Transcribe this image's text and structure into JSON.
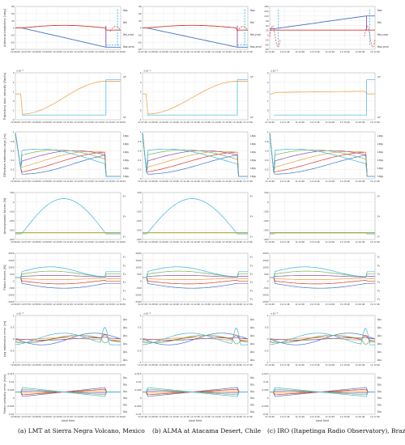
{
  "chart_data": {
    "type": "line",
    "layout": "7 rows x 3 columns of small-multiple line plots",
    "grid": true,
    "columns": [
      {
        "caption": "(a)  LMT at Sierra Negra Volcano, Mexico",
        "xticks": [
          "12:06:09",
          "12:07:09",
          "12:08:09",
          "12:09:09",
          "12:10:09",
          "12:11:09",
          "12:12:09",
          "12:13:09",
          "12:14:09",
          "12:15:09",
          "12:16:09"
        ],
        "xlabel": "Local time"
      },
      {
        "caption": "(b)  ALMA at Atacama Desert, Chile",
        "xticks": [
          "11:07:46",
          "11:08:46",
          "11:09:46",
          "11:10:46",
          "11:11:46",
          "11:12:46",
          "11:13:46",
          "11:14:46",
          "11:15:46",
          "11:16:46",
          "11:17:46"
        ],
        "xlabel": "Local time"
      },
      {
        "caption": "(c)  IRO (Itapetinga Radio Observatory), Brazil",
        "xticks": [
          "11:10:46",
          "11:11:46",
          "11:12:46",
          "11:13:46",
          "11:14:46",
          "11:15:46",
          "11:16:46",
          "11:17:46"
        ],
        "xlabel": "Local time"
      }
    ],
    "rows": [
      {
        "ylabel": "Antenna trajectory [deg]",
        "multiplier": "",
        "yticks": [
          [
            "90",
            "60",
            "30",
            "0",
            "-30",
            "-60",
            "-90"
          ],
          [
            "90",
            "60",
            "30",
            "0",
            "-30",
            "-60",
            "-90"
          ],
          [
            "180",
            "150",
            "120",
            "90",
            "60",
            "30",
            "0",
            "-30",
            "-60",
            "-90"
          ]
        ],
        "legend": [
          "θaz",
          "θel",
          "θel,cmd",
          "θaz,cmd"
        ]
      },
      {
        "ylabel": "Trajectory task velocity [Rad/s]",
        "multiplier": "×10⁻³",
        "yticks": [
          [
            "3",
            "2",
            "1",
            "0",
            "-1",
            "-2"
          ],
          [
            "4",
            "3",
            "2",
            "1",
            "0",
            "-1"
          ],
          [
            "4",
            "3",
            "2",
            "1",
            "0",
            "-1"
          ]
        ],
        "legend": [
          "ωᵃ",
          "ωᵉ"
        ]
      },
      {
        "ylabel": "Effective extension legs [m]",
        "multiplier": "",
        "yticks": [
          [
            "1",
            "0.8",
            "0.6",
            "0.4",
            "0.2",
            "0"
          ],
          [
            "1",
            "0.8",
            "0.6",
            "0.4",
            "0.2",
            "0"
          ],
          [
            "1",
            "0.8",
            "0.6",
            "0.4",
            "0.2",
            "0"
          ]
        ],
        "legend": [
          "Leg₁",
          "Leg₂",
          "Leg₃",
          "Leg₄",
          "Leg₅",
          "Leg₆"
        ]
      },
      {
        "ylabel": "Aerodynamic forces [N]",
        "multiplier": "",
        "yticks": [
          [
            "100",
            "0",
            "-100",
            "-200",
            "-300",
            "-400"
          ],
          [
            "100",
            "0",
            "-100",
            "-200",
            "-300",
            "-400"
          ],
          [
            "100",
            "0",
            "-100",
            "-200",
            "-300",
            "-400"
          ]
        ],
        "legend": [
          "Fᵃ",
          "Fᵇ",
          "Fᶜ"
        ]
      },
      {
        "ylabel": "Piston forces [N]",
        "multiplier": "",
        "yticks": [
          [
            "2000",
            "1500",
            "1000",
            "500",
            "0",
            "-500",
            "-1000",
            "-1500"
          ],
          [
            "2000",
            "1500",
            "1000",
            "500",
            "0",
            "-500",
            "-1000",
            "-1500"
          ],
          [
            "2000",
            "1500",
            "1000",
            "500",
            "0",
            "-500",
            "-1000",
            "-1500"
          ]
        ],
        "legend": [
          "F₁",
          "F₂",
          "F₃",
          "F₄",
          "F₅",
          "F₆"
        ]
      },
      {
        "ylabel": "Leg extension error [m]",
        "multiplier": "×10⁻⁴",
        "yticks": [
          [
            "1",
            "0.5",
            "0",
            "-0.5",
            "-1"
          ],
          [
            "1",
            "0.5",
            "0",
            "-0.5",
            "-1"
          ],
          [
            "1",
            "0.5",
            "0",
            "-0.5",
            "-1"
          ]
        ],
        "legend": [
          "Δx₁",
          "Δx₂",
          "Δx₃",
          "Δx₄",
          "Δx₅",
          "Δx₆"
        ]
      },
      {
        "ylabel": "Piston velocity error [m/s]",
        "multiplier": "",
        "yticks": [
          [
            "0.015",
            "0.01",
            "0.005",
            "0",
            "-0.005",
            "-0.01"
          ],
          [
            "0.015",
            "0.01",
            "0.005",
            "0",
            "-0.005",
            "-0.01"
          ],
          [
            "0.015",
            "0.01",
            "0.005",
            "0",
            "-0.005",
            "-0.01"
          ]
        ],
        "legend": [
          "δẋ₁",
          "δẋ₂",
          "δẋ₃",
          "δẋ₄",
          "δẋ₅",
          "δẋ₆"
        ]
      }
    ]
  },
  "colors": {
    "blue": "#4472c4",
    "red": "#d43a2f",
    "orange": "#ed9c3a",
    "yellow": "#d8c23a",
    "purple": "#8a4fa8",
    "green": "#79b44a",
    "cyan": "#3bb4e0",
    "grid": "#e6e6e6",
    "axis": "#888888"
  }
}
